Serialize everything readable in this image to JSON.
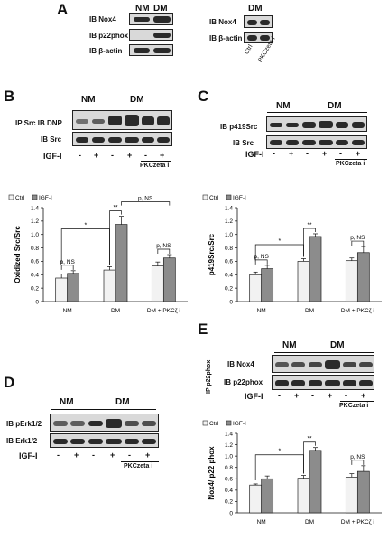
{
  "panel_a": {
    "letter": "A",
    "left": {
      "groups": [
        "NM",
        "DM"
      ],
      "rows": [
        "IB Nox4",
        "IB p22phox",
        "IB β-actin"
      ]
    },
    "right": {
      "group": "DM",
      "rows": [
        "IB Nox4",
        "IB β-actin"
      ],
      "lanes": [
        "Ctrl",
        "PKCzeta i"
      ]
    }
  },
  "panel_b": {
    "letter": "B",
    "groups": [
      "NM",
      "DM"
    ],
    "rows": [
      "IP Src  IB DNP",
      "IB Src"
    ],
    "igf_label": "IGF-I",
    "signs": [
      "-",
      "+",
      "-",
      "+",
      "-",
      "+"
    ],
    "inhibitor": "PKCzeta i"
  },
  "panel_c": {
    "letter": "C",
    "groups": [
      "NM",
      "DM"
    ],
    "rows": [
      "IB p419Src",
      "IB Src"
    ],
    "igf_label": "IGF-I",
    "signs": [
      "-",
      "+",
      "-",
      "+",
      "-",
      "+"
    ],
    "inhibitor": "PKCzeta i"
  },
  "panel_d": {
    "letter": "D",
    "groups": [
      "NM",
      "DM"
    ],
    "rows": [
      "IB pErk1/2",
      "IB Erk1/2"
    ],
    "igf_label": "IGF-I",
    "signs": [
      "-",
      "+",
      "-",
      "+",
      "-",
      "+"
    ],
    "inhibitor": "PKCzeta i"
  },
  "panel_e": {
    "letter": "E",
    "side_label": "IP p22phox",
    "groups": [
      "NM",
      "DM"
    ],
    "rows": [
      "IB Nox4",
      "IB p22phox"
    ],
    "igf_label": "IGF-I",
    "signs": [
      "-",
      "+",
      "-",
      "+",
      "-",
      "+"
    ],
    "inhibitor": "PKCzeta i"
  },
  "chart_data": [
    {
      "type": "bar",
      "panel": "B",
      "categories": [
        "NM",
        "DM",
        "DM + PKCζ i"
      ],
      "series": [
        {
          "name": "Ctrl",
          "values": [
            0.35,
            0.47,
            0.53
          ],
          "errors": [
            0.06,
            0.05,
            0.06
          ]
        },
        {
          "name": "IGF-I",
          "values": [
            0.42,
            1.15,
            0.65
          ],
          "errors": [
            0.04,
            0.12,
            0.05
          ]
        }
      ],
      "ylabel": "Oxidized Src/Src",
      "ylim": [
        0,
        1.4
      ],
      "yticks": [
        "0",
        "0.2",
        "0.4",
        "0.6",
        "0.8",
        "1.0",
        "1.2",
        "1.4"
      ],
      "annotations": [
        "p, NS",
        "**",
        "*",
        "p, NS",
        "p, NS"
      ]
    },
    {
      "type": "bar",
      "panel": "C",
      "categories": [
        "NM",
        "DM",
        "DM + PKCζ i"
      ],
      "series": [
        {
          "name": "Ctrl",
          "values": [
            0.4,
            0.6,
            0.61
          ],
          "errors": [
            0.04,
            0.04,
            0.04
          ]
        },
        {
          "name": "IGF-I",
          "values": [
            0.49,
            0.97,
            0.73
          ],
          "errors": [
            0.05,
            0.04,
            0.09
          ]
        }
      ],
      "ylabel": "p419Src/Src",
      "ylim": [
        0,
        1.4
      ],
      "yticks": [
        "0",
        "0.2",
        "0.4",
        "0.6",
        "0.8",
        "1.0",
        "1.2",
        "1.4"
      ],
      "annotations": [
        "p, NS",
        "**",
        "*",
        "p, NS"
      ]
    },
    {
      "type": "bar",
      "panel": "E",
      "categories": [
        "NM",
        "DM",
        "DM + PKCζ i"
      ],
      "series": [
        {
          "name": "Ctrl",
          "values": [
            0.49,
            0.61,
            0.63
          ],
          "errors": [
            0.02,
            0.05,
            0.06
          ]
        },
        {
          "name": "IGF-I",
          "values": [
            0.6,
            1.1,
            0.73
          ],
          "errors": [
            0.05,
            0.05,
            0.1
          ]
        }
      ],
      "ylabel": "Nox4/ p22 phox",
      "ylim": [
        0,
        1.4
      ],
      "yticks": [
        "0",
        "0.2",
        "0.4",
        "0.6",
        "0.8",
        "1.0",
        "1.2",
        "1.4"
      ],
      "annotations": [
        "**",
        "*",
        "p, NS"
      ]
    }
  ]
}
